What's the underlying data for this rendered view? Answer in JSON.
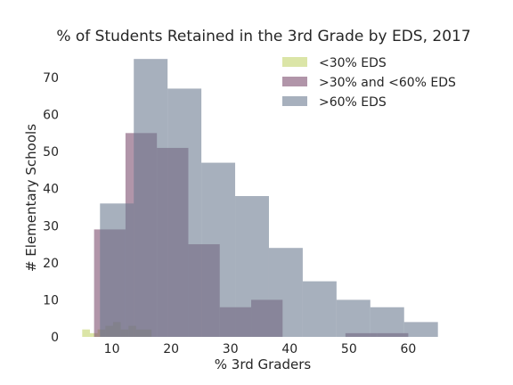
{
  "chart_data": {
    "type": "bar",
    "subtype": "overlaid-histogram",
    "title": "% of Students Retained in the 3rd Grade by EDS, 2017",
    "xlabel": "% 3rd Graders",
    "ylabel": "# Elementary Schools",
    "xlim": [
      3,
      67
    ],
    "ylim": [
      0,
      76
    ],
    "xticks": [
      10,
      20,
      30,
      40,
      50,
      60
    ],
    "yticks": [
      0,
      10,
      20,
      30,
      40,
      50,
      60,
      70
    ],
    "grid": false,
    "legend_position": "top-right",
    "series": [
      {
        "name": "<30% EDS",
        "color": "#c3d46c",
        "bins": [
          {
            "x0": 5.0,
            "x1": 6.3,
            "count": 2
          },
          {
            "x0": 6.3,
            "x1": 7.6,
            "count": 1
          },
          {
            "x0": 7.6,
            "x1": 8.9,
            "count": 2
          },
          {
            "x0": 8.9,
            "x1": 10.2,
            "count": 3
          },
          {
            "x0": 10.2,
            "x1": 11.5,
            "count": 4
          },
          {
            "x0": 11.5,
            "x1": 12.8,
            "count": 2
          },
          {
            "x0": 12.8,
            "x1": 14.1,
            "count": 3
          },
          {
            "x0": 14.1,
            "x1": 15.4,
            "count": 2
          },
          {
            "x0": 15.4,
            "x1": 16.7,
            "count": 2
          }
        ]
      },
      {
        "name": ">30% and <60% EDS",
        "color": "#7d4f6f",
        "bins": [
          {
            "x0": 7.0,
            "x1": 12.3,
            "count": 29
          },
          {
            "x0": 12.3,
            "x1": 17.6,
            "count": 55
          },
          {
            "x0": 17.6,
            "x1": 22.9,
            "count": 51
          },
          {
            "x0": 22.9,
            "x1": 28.2,
            "count": 25
          },
          {
            "x0": 28.2,
            "x1": 33.5,
            "count": 8
          },
          {
            "x0": 33.5,
            "x1": 38.8,
            "count": 10
          },
          {
            "x0": 38.8,
            "x1": 44.1,
            "count": 0
          },
          {
            "x0": 44.1,
            "x1": 49.4,
            "count": 0
          },
          {
            "x0": 49.4,
            "x1": 54.7,
            "count": 1
          },
          {
            "x0": 54.7,
            "x1": 60.0,
            "count": 1
          }
        ]
      },
      {
        "name": ">60% EDS",
        "color": "#6d7b91",
        "bins": [
          {
            "x0": 8.0,
            "x1": 13.7,
            "count": 36
          },
          {
            "x0": 13.7,
            "x1": 19.4,
            "count": 75
          },
          {
            "x0": 19.4,
            "x1": 25.1,
            "count": 67
          },
          {
            "x0": 25.1,
            "x1": 30.8,
            "count": 47
          },
          {
            "x0": 30.8,
            "x1": 36.5,
            "count": 38
          },
          {
            "x0": 36.5,
            "x1": 42.2,
            "count": 24
          },
          {
            "x0": 42.2,
            "x1": 47.9,
            "count": 15
          },
          {
            "x0": 47.9,
            "x1": 53.6,
            "count": 10
          },
          {
            "x0": 53.6,
            "x1": 59.3,
            "count": 8
          },
          {
            "x0": 59.3,
            "x1": 65.0,
            "count": 4
          }
        ]
      }
    ]
  }
}
